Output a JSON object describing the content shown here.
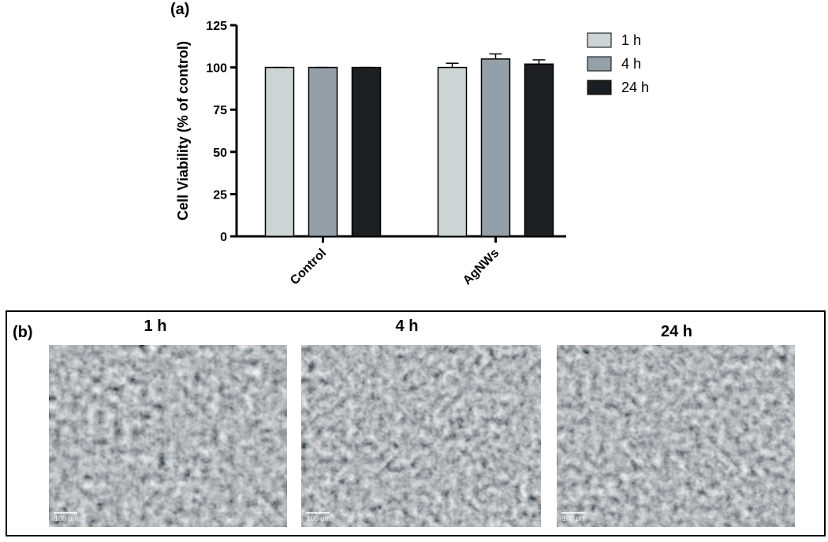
{
  "chart_data": {
    "type": "bar",
    "panel_label": "(a)",
    "y_label": "Cell Viability (% of control)",
    "categories": [
      "Control",
      "AgNWs"
    ],
    "series": [
      {
        "name": "1 h",
        "color": "#ccd4d4",
        "values": [
          100,
          100
        ],
        "errors": [
          0,
          2.5
        ]
      },
      {
        "name": "4 h",
        "color": "#949fa7",
        "values": [
          100,
          105
        ],
        "errors": [
          0,
          3
        ]
      },
      {
        "name": "24 h",
        "color": "#1c1f21",
        "values": [
          100,
          102
        ],
        "errors": [
          0,
          2.5
        ]
      }
    ],
    "ylim": [
      0,
      125
    ],
    "yticks": [
      0,
      25,
      50,
      75,
      100,
      125
    ],
    "legend": "right"
  },
  "panel_b": {
    "panel_label": "(b)",
    "images": [
      "1 h",
      "4 h",
      "24 h"
    ],
    "scale_bar": "100 µm"
  }
}
